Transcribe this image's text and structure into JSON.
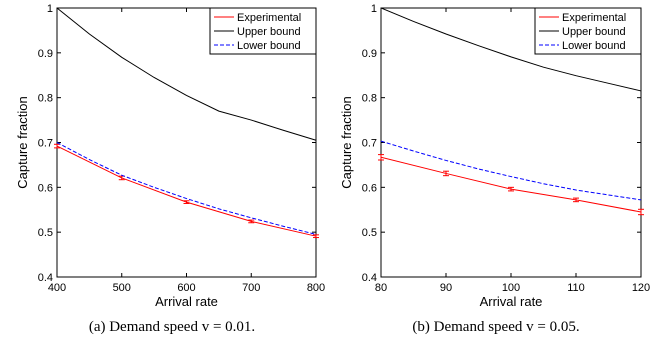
{
  "chart_data": [
    {
      "type": "line",
      "caption": "(a)  Demand speed v = 0.01.",
      "xlabel": "Arrival rate",
      "ylabel": "Capture fraction",
      "xlim": [
        400,
        800
      ],
      "ylim": [
        0.4,
        1.0
      ],
      "xticks": [
        400,
        500,
        600,
        700,
        800
      ],
      "yticks": [
        0.4,
        0.5,
        0.6,
        0.7,
        0.8,
        0.9,
        1.0
      ],
      "legend_position": "top-right",
      "grid": false,
      "series": [
        {
          "name": "Experimental",
          "color": "#ff0000",
          "style": "solid",
          "error_bars": true,
          "x": [
            400,
            500,
            600,
            700,
            800
          ],
          "y": [
            0.692,
            0.621,
            0.567,
            0.524,
            0.491
          ],
          "err": [
            0.004,
            0.004,
            0.003,
            0.003,
            0.003
          ]
        },
        {
          "name": "Upper bound",
          "color": "#000000",
          "style": "solid",
          "x": [
            400,
            450,
            500,
            550,
            600,
            650,
            700,
            750,
            800
          ],
          "y": [
            1.0,
            0.942,
            0.89,
            0.845,
            0.805,
            0.77,
            0.75,
            0.727,
            0.705
          ]
        },
        {
          "name": "Lower bound",
          "color": "#0000ff",
          "style": "dashed",
          "x": [
            400,
            450,
            500,
            550,
            600,
            650,
            700,
            750,
            800
          ],
          "y": [
            0.7,
            0.662,
            0.627,
            0.6,
            0.575,
            0.552,
            0.532,
            0.513,
            0.495
          ]
        }
      ]
    },
    {
      "type": "line",
      "caption": "(b)  Demand speed v = 0.05.",
      "xlabel": "Arrival rate",
      "ylabel": "Capture fraction",
      "xlim": [
        80,
        120
      ],
      "ylim": [
        0.4,
        1.0
      ],
      "xticks": [
        80,
        90,
        100,
        110,
        120
      ],
      "yticks": [
        0.4,
        0.5,
        0.6,
        0.7,
        0.8,
        0.9,
        1.0
      ],
      "legend_position": "top-right",
      "grid": false,
      "series": [
        {
          "name": "Experimental",
          "color": "#ff0000",
          "style": "solid",
          "error_bars": true,
          "x": [
            80,
            90,
            100,
            110,
            120
          ],
          "y": [
            0.667,
            0.631,
            0.596,
            0.572,
            0.545
          ],
          "err": [
            0.006,
            0.005,
            0.004,
            0.004,
            0.006
          ]
        },
        {
          "name": "Upper bound",
          "color": "#000000",
          "style": "solid",
          "x": [
            80,
            85,
            90,
            95,
            100,
            105,
            110,
            115,
            120
          ],
          "y": [
            1.0,
            0.97,
            0.942,
            0.916,
            0.891,
            0.868,
            0.849,
            0.832,
            0.815
          ]
        },
        {
          "name": "Lower bound",
          "color": "#0000ff",
          "style": "dashed",
          "x": [
            80,
            85,
            90,
            95,
            100,
            105,
            110,
            115,
            120
          ],
          "y": [
            0.703,
            0.681,
            0.66,
            0.641,
            0.624,
            0.608,
            0.594,
            0.583,
            0.572
          ]
        }
      ]
    }
  ]
}
